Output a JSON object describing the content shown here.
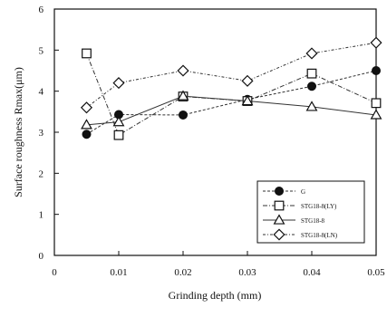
{
  "chart_data": {
    "type": "line",
    "title": "",
    "xlabel": "Grinding depth (mm)",
    "ylabel": "Surface roughness  Rmax(μm)",
    "xlim": [
      0,
      0.05
    ],
    "ylim": [
      0,
      6
    ],
    "x_ticks": [
      0,
      0.01,
      0.02,
      0.03,
      0.04,
      0.05
    ],
    "x_tick_labels": [
      "0",
      "0.01",
      "0.02",
      "0.03",
      "0.04",
      "0.05"
    ],
    "y_ticks": [
      0,
      1,
      2,
      3,
      4,
      5,
      6
    ],
    "y_tick_labels": [
      "0",
      "1",
      "2",
      "3",
      "4",
      "5",
      "6"
    ],
    "grid": false,
    "legend_position": "bottom-right",
    "x": [
      0.005,
      0.01,
      0.02,
      0.03,
      0.04,
      0.05
    ],
    "series": [
      {
        "name": "G",
        "marker": "filled-circle",
        "values": [
          2.95,
          3.43,
          3.42,
          3.8,
          4.12,
          4.5
        ]
      },
      {
        "name": "STG18-8(LY)",
        "marker": "open-square",
        "values": [
          4.92,
          2.93,
          3.87,
          3.76,
          4.43,
          3.71
        ]
      },
      {
        "name": "STG18-8",
        "marker": "open-triangle",
        "values": [
          3.18,
          3.25,
          3.88,
          3.76,
          3.62,
          3.42
        ]
      },
      {
        "name": "STG18-8(LN)",
        "marker": "open-diamond",
        "values": [
          3.6,
          4.2,
          4.5,
          4.25,
          4.92,
          5.18
        ]
      }
    ]
  }
}
